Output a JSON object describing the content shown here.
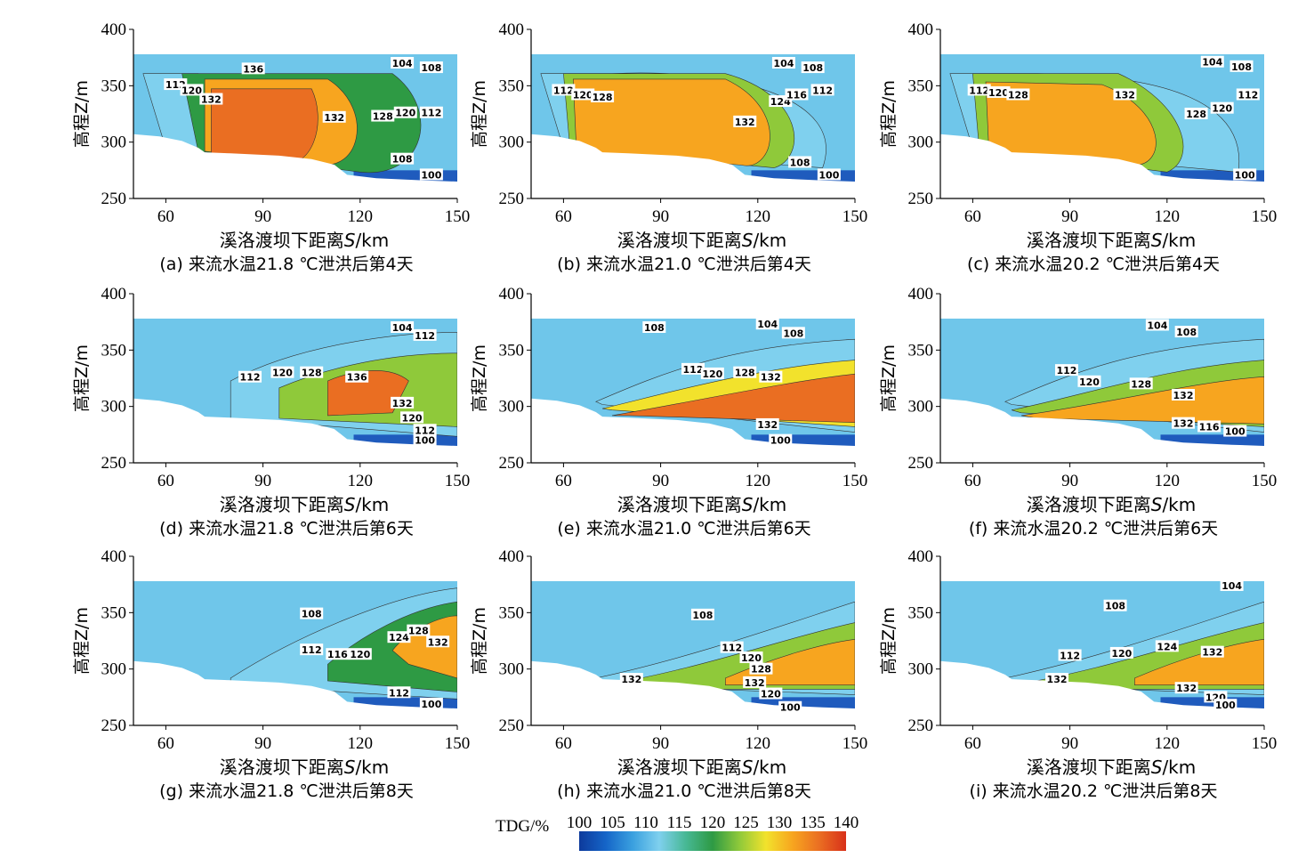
{
  "chart_data": {
    "type": "heatmap",
    "colorbar": {
      "title": "TDG/%",
      "ticks": [
        "100",
        "105",
        "110",
        "115",
        "120",
        "125",
        "130",
        "135",
        "140"
      ],
      "range": [
        100,
        140
      ],
      "colors": [
        "#0d3a9c",
        "#1565c8",
        "#3aa0df",
        "#7fd0ee",
        "#47b894",
        "#2e9a44",
        "#8fc93a",
        "#f2e22c",
        "#f7a51f",
        "#ea6e22",
        "#d8301a"
      ]
    },
    "xlim": [
      50,
      150
    ],
    "ylim": [
      250,
      400
    ],
    "xticks": [
      "60",
      "90",
      "120",
      "150"
    ],
    "yticks": [
      "400",
      "350",
      "300",
      "250"
    ],
    "xlabel_prefix": "溪洛渡坝下距离",
    "xlabel_var": "S",
    "xlabel_unit": "/km",
    "ylabel": "高程Z/m",
    "panels": [
      {
        "caption": "(a) 来流水温21.8 ℃泄洪后第4天",
        "contours": [
          [
            "112",
            63,
            351
          ],
          [
            "120",
            68,
            346
          ],
          [
            "132",
            74,
            338
          ],
          [
            "136",
            87,
            365
          ],
          [
            "132",
            112,
            322
          ],
          [
            "128",
            127,
            323
          ],
          [
            "120",
            134,
            326
          ],
          [
            "112",
            142,
            326
          ],
          [
            "104",
            133,
            370
          ],
          [
            "108",
            142,
            366
          ],
          [
            "108",
            133,
            285
          ],
          [
            "100",
            142,
            271
          ]
        ]
      },
      {
        "caption": "(b) 来流水温21.0 ℃泄洪后第4天",
        "contours": [
          [
            "112",
            60,
            346
          ],
          [
            "120",
            66,
            342
          ],
          [
            "128",
            72,
            340
          ],
          [
            "132",
            116,
            318
          ],
          [
            "124",
            127,
            336
          ],
          [
            "116",
            132,
            342
          ],
          [
            "112",
            140,
            346
          ],
          [
            "104",
            128,
            370
          ],
          [
            "108",
            137,
            366
          ],
          [
            "108",
            133,
            282
          ],
          [
            "100",
            142,
            271
          ]
        ]
      },
      {
        "caption": "(c) 来流水温20.2 ℃泄洪后第4天",
        "contours": [
          [
            "112",
            62,
            346
          ],
          [
            "120",
            68,
            344
          ],
          [
            "128",
            74,
            342
          ],
          [
            "132",
            107,
            342
          ],
          [
            "128",
            129,
            325
          ],
          [
            "120",
            137,
            330
          ],
          [
            "112",
            145,
            342
          ],
          [
            "104",
            134,
            371
          ],
          [
            "108",
            143,
            367
          ],
          [
            "100",
            144,
            271
          ]
        ]
      },
      {
        "caption": "(d) 来流水温21.8 ℃泄洪后第6天",
        "contours": [
          [
            "112",
            86,
            326
          ],
          [
            "120",
            96,
            330
          ],
          [
            "128",
            105,
            330
          ],
          [
            "136",
            119,
            326
          ],
          [
            "132",
            133,
            303
          ],
          [
            "120",
            136,
            290
          ],
          [
            "112",
            140,
            279
          ],
          [
            "104",
            133,
            370
          ],
          [
            "112",
            140,
            363
          ],
          [
            "100",
            140,
            270
          ]
        ]
      },
      {
        "caption": "(e) 来流水温21.0 ℃泄洪后第6天",
        "contours": [
          [
            "108",
            88,
            370
          ],
          [
            "104",
            123,
            373
          ],
          [
            "108",
            131,
            365
          ],
          [
            "112",
            100,
            333
          ],
          [
            "120",
            106,
            329
          ],
          [
            "128",
            116,
            330
          ],
          [
            "132",
            124,
            326
          ],
          [
            "132",
            123,
            284
          ],
          [
            "100",
            127,
            270
          ]
        ]
      },
      {
        "caption": "(f) 来流水温20.2 ℃泄洪后第6天",
        "contours": [
          [
            "104",
            117,
            372
          ],
          [
            "108",
            126,
            366
          ],
          [
            "112",
            89,
            332
          ],
          [
            "120",
            96,
            322
          ],
          [
            "128",
            112,
            320
          ],
          [
            "132",
            125,
            310
          ],
          [
            "132",
            125,
            285
          ],
          [
            "116",
            133,
            282
          ],
          [
            "100",
            141,
            278
          ]
        ]
      },
      {
        "caption": "(g) 来流水温21.8 ℃泄洪后第8天",
        "contours": [
          [
            "108",
            105,
            349
          ],
          [
            "112",
            105,
            317
          ],
          [
            "116",
            113,
            313
          ],
          [
            "120",
            120,
            313
          ],
          [
            "124",
            132,
            328
          ],
          [
            "128",
            138,
            334
          ],
          [
            "132",
            144,
            324
          ],
          [
            "112",
            132,
            279
          ],
          [
            "100",
            142,
            269
          ]
        ]
      },
      {
        "caption": "(h) 来流水温21.0 ℃泄洪后第8天",
        "contours": [
          [
            "108",
            103,
            348
          ],
          [
            "112",
            112,
            319
          ],
          [
            "120",
            118,
            310
          ],
          [
            "128",
            121,
            300
          ],
          [
            "132",
            81,
            291
          ],
          [
            "132",
            119,
            288
          ],
          [
            "120",
            124,
            278
          ],
          [
            "100",
            130,
            266
          ]
        ]
      },
      {
        "caption": "(i) 来流水温20.2 ℃泄洪后第8天",
        "contours": [
          [
            "104",
            140,
            374
          ],
          [
            "108",
            104,
            356
          ],
          [
            "112",
            90,
            312
          ],
          [
            "120",
            106,
            314
          ],
          [
            "124",
            120,
            320
          ],
          [
            "132",
            134,
            315
          ],
          [
            "132",
            86,
            291
          ],
          [
            "132",
            126,
            283
          ],
          [
            "120",
            135,
            275
          ],
          [
            "100",
            138,
            268
          ]
        ]
      }
    ]
  }
}
